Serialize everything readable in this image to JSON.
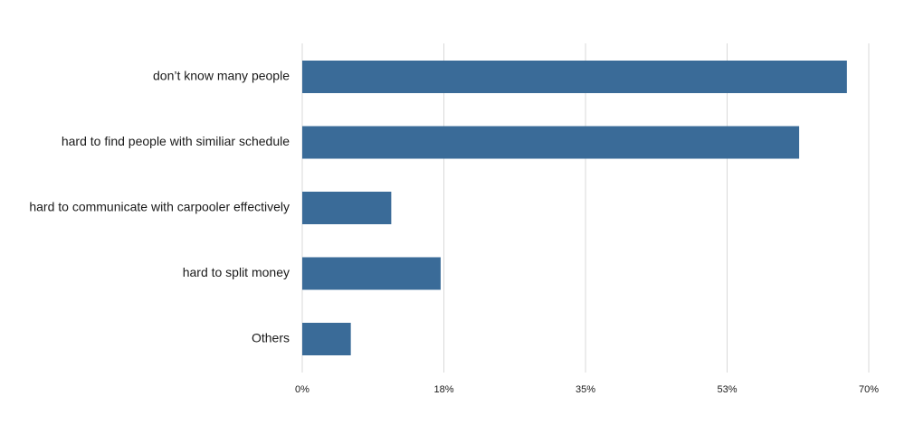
{
  "chart_data": {
    "type": "bar",
    "orientation": "horizontal",
    "categories": [
      "don’t know many people",
      "hard to find people with similiar schedule",
      "hard to communicate with carpooler effectively",
      "hard to split money",
      "Others"
    ],
    "values": [
      67.3,
      61.4,
      11.0,
      17.1,
      6.0
    ],
    "x_ticks": [
      0,
      17.5,
      35,
      52.5,
      70
    ],
    "x_tick_labels": [
      "0%",
      "18%",
      "35%",
      "53%",
      "70%"
    ],
    "xlim": [
      0,
      70
    ],
    "grid": "vertical",
    "legend": "none",
    "title": "",
    "xlabel": "",
    "ylabel": "",
    "bar_color": "#3a6b98",
    "grid_color": "#d9d9d9"
  }
}
